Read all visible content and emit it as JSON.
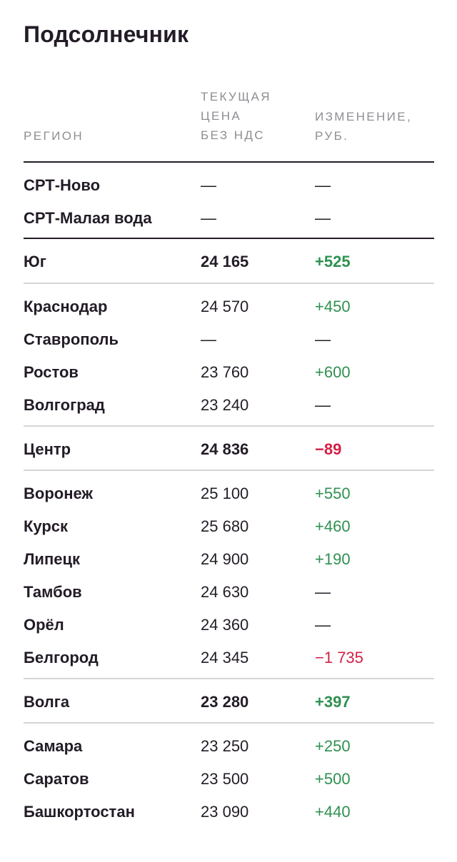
{
  "title": "Подсолнечник",
  "headers": {
    "region": "РЕГИОН",
    "price_line1": "ТЕКУЩАЯ",
    "price_line2": "ЦЕНА",
    "price_line3": "БЕЗ НДС",
    "change_line1": "ИЗМЕНЕНИЕ,",
    "change_line2": "РУБ."
  },
  "colors": {
    "positive": "#2e9150",
    "negative": "#d51f45",
    "text": "#231c27"
  },
  "rows": [
    {
      "region": "СРТ-Ново",
      "price": "—",
      "change": "—",
      "tone": "neutral"
    },
    {
      "region": "СРТ-Малая вода",
      "price": "—",
      "change": "—",
      "tone": "neutral"
    },
    {
      "region": "Юг",
      "price": "24 165",
      "change": "+525",
      "tone": "pos"
    },
    {
      "region": "Краснодар",
      "price": "24 570",
      "change": "+450",
      "tone": "pos"
    },
    {
      "region": "Ставрополь",
      "price": "—",
      "change": "—",
      "tone": "neutral"
    },
    {
      "region": "Ростов",
      "price": "23 760",
      "change": "+600",
      "tone": "pos"
    },
    {
      "region": "Волгоград",
      "price": "23 240",
      "change": "—",
      "tone": "neutral"
    },
    {
      "region": "Центр",
      "price": "24 836",
      "change": "−89",
      "tone": "neg"
    },
    {
      "region": "Воронеж",
      "price": "25 100",
      "change": "+550",
      "tone": "pos"
    },
    {
      "region": "Курск",
      "price": "25 680",
      "change": "+460",
      "tone": "pos"
    },
    {
      "region": "Липецк",
      "price": "24 900",
      "change": "+190",
      "tone": "pos"
    },
    {
      "region": "Тамбов",
      "price": "24 630",
      "change": "—",
      "tone": "neutral"
    },
    {
      "region": "Орёл",
      "price": "24 360",
      "change": "—",
      "tone": "neutral"
    },
    {
      "region": "Белгород",
      "price": "24 345",
      "change": "−1 735",
      "tone": "neg"
    },
    {
      "region": "Волга",
      "price": "23 280",
      "change": "+397",
      "tone": "pos"
    },
    {
      "region": "Самара",
      "price": "23 250",
      "change": "+250",
      "tone": "pos"
    },
    {
      "region": "Саратов",
      "price": "23 500",
      "change": "+500",
      "tone": "pos"
    },
    {
      "region": "Башкортостан",
      "price": "23 090",
      "change": "+440",
      "tone": "pos"
    }
  ]
}
